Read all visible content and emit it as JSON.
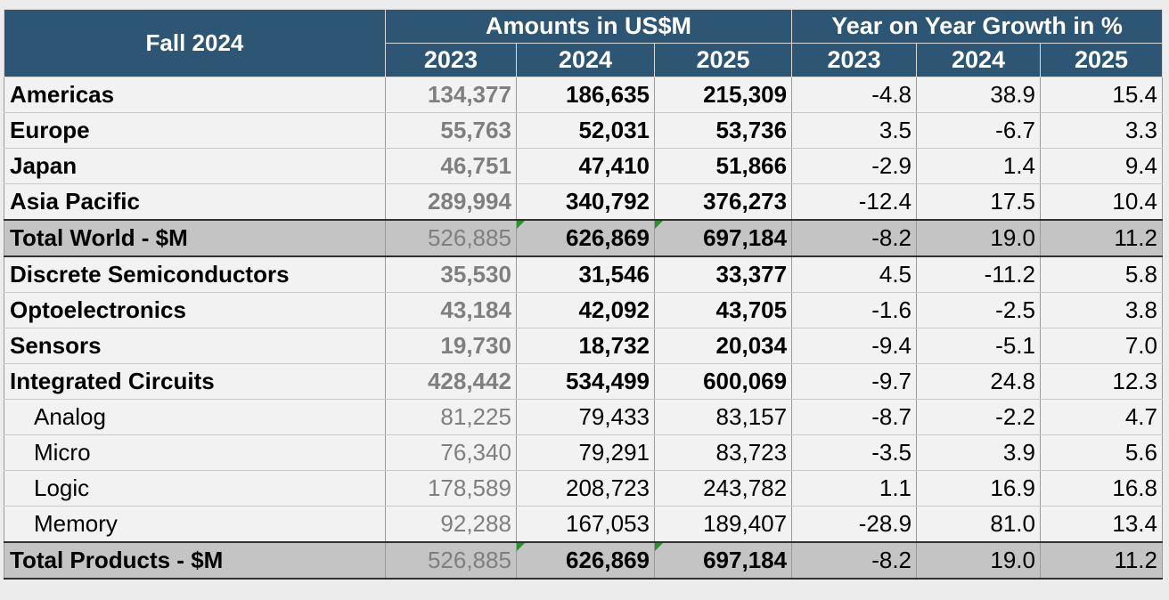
{
  "chart_data": {
    "type": "table",
    "corner_label": "Fall 2024",
    "group_headers": [
      {
        "label": "Amounts in US$M",
        "years": [
          "2023",
          "2024",
          "2025"
        ]
      },
      {
        "label": "Year on Year Growth in %",
        "years": [
          "2023",
          "2024",
          "2025"
        ]
      }
    ],
    "rows": [
      {
        "label": "Americas",
        "level": "main",
        "amounts": [
          "134,377",
          "186,635",
          "215,309"
        ],
        "growth": [
          "-4.8",
          "38.9",
          "15.4"
        ]
      },
      {
        "label": "Europe",
        "level": "main",
        "amounts": [
          "55,763",
          "52,031",
          "53,736"
        ],
        "growth": [
          "3.5",
          "-6.7",
          "3.3"
        ]
      },
      {
        "label": "Japan",
        "level": "main",
        "amounts": [
          "46,751",
          "47,410",
          "51,866"
        ],
        "growth": [
          "-2.9",
          "1.4",
          "9.4"
        ]
      },
      {
        "label": "Asia Pacific",
        "level": "main",
        "amounts": [
          "289,994",
          "340,792",
          "376,273"
        ],
        "growth": [
          "-12.4",
          "17.5",
          "10.4"
        ]
      },
      {
        "label": "Total World - $M",
        "level": "total",
        "amounts": [
          "526,885",
          "626,869",
          "697,184"
        ],
        "growth": [
          "-8.2",
          "19.0",
          "11.2"
        ]
      },
      {
        "label": "Discrete Semiconductors",
        "level": "main",
        "amounts": [
          "35,530",
          "31,546",
          "33,377"
        ],
        "growth": [
          "4.5",
          "-11.2",
          "5.8"
        ]
      },
      {
        "label": "Optoelectronics",
        "level": "main",
        "amounts": [
          "43,184",
          "42,092",
          "43,705"
        ],
        "growth": [
          "-1.6",
          "-2.5",
          "3.8"
        ]
      },
      {
        "label": "Sensors",
        "level": "main",
        "amounts": [
          "19,730",
          "18,732",
          "20,034"
        ],
        "growth": [
          "-9.4",
          "-5.1",
          "7.0"
        ]
      },
      {
        "label": "Integrated Circuits",
        "level": "main",
        "amounts": [
          "428,442",
          "534,499",
          "600,069"
        ],
        "growth": [
          "-9.7",
          "24.8",
          "12.3"
        ]
      },
      {
        "label": "Analog",
        "level": "sub",
        "amounts": [
          "81,225",
          "79,433",
          "83,157"
        ],
        "growth": [
          "-8.7",
          "-2.2",
          "4.7"
        ]
      },
      {
        "label": "Micro",
        "level": "sub",
        "amounts": [
          "76,340",
          "79,291",
          "83,723"
        ],
        "growth": [
          "-3.5",
          "3.9",
          "5.6"
        ]
      },
      {
        "label": "Logic",
        "level": "sub",
        "amounts": [
          "178,589",
          "208,723",
          "243,782"
        ],
        "growth": [
          "1.1",
          "16.9",
          "16.8"
        ]
      },
      {
        "label": "Memory",
        "level": "sub",
        "amounts": [
          "92,288",
          "167,053",
          "189,407"
        ],
        "growth": [
          "-28.9",
          "81.0",
          "13.4"
        ]
      },
      {
        "label": "Total Products - $M",
        "level": "total",
        "amounts": [
          "526,885",
          "626,869",
          "697,184"
        ],
        "growth": [
          "-8.2",
          "19.0",
          "11.2"
        ]
      }
    ]
  },
  "colors": {
    "header_bg": "#2d5574",
    "header_text": "#ffffff",
    "cell_bg": "#f2f2f2",
    "total_bg": "#c4c4c4",
    "year2023_text": "#7f7f7f",
    "marker_green": "#2f8f2f"
  }
}
